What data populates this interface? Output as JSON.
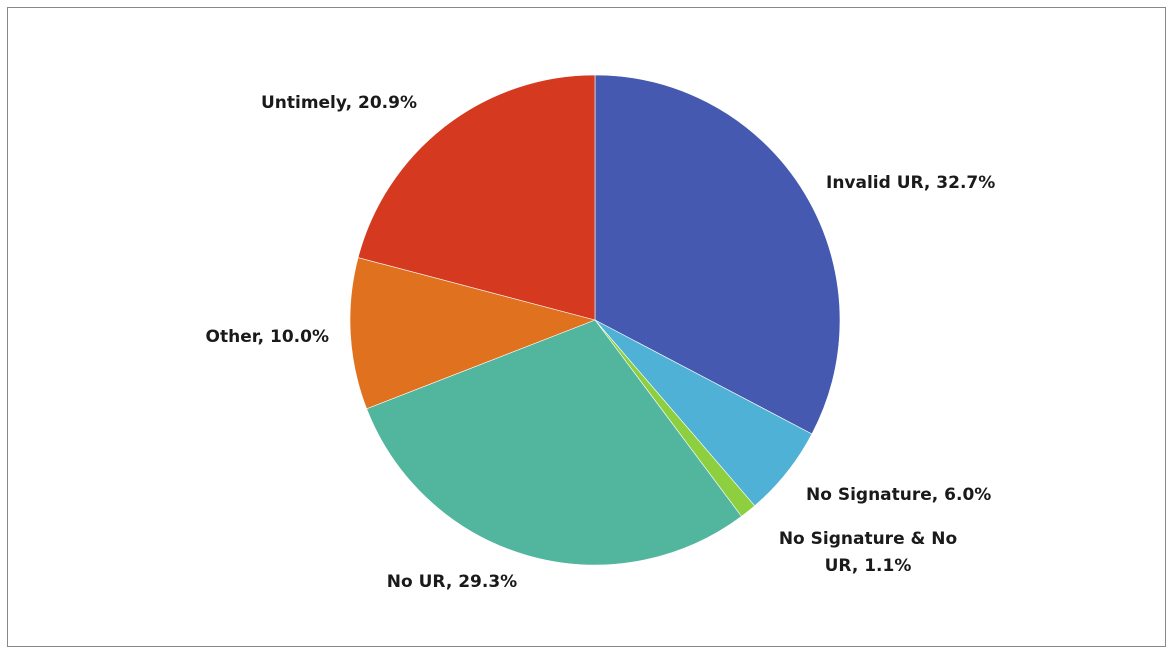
{
  "chart_data": {
    "type": "pie",
    "title": "",
    "slices": [
      {
        "category": "Invalid UR",
        "value": 32.7,
        "label": "Invalid UR, 32.7%",
        "color": "#4459AF"
      },
      {
        "category": "No Signature",
        "value": 6.0,
        "label": "No Signature, 6.0%",
        "color": "#50B1D6"
      },
      {
        "category": "No Signature & No UR",
        "value": 1.1,
        "label_lines": [
          "No Signature & No",
          "UR, 1.1%"
        ],
        "color": "#8DCF3F"
      },
      {
        "category": "No UR",
        "value": 29.3,
        "label": "No UR, 29.3%",
        "color": "#52B69E"
      },
      {
        "category": "Other",
        "value": 10.0,
        "label": "Other, 10.0%",
        "color": "#E0721F"
      },
      {
        "category": "Untimely",
        "value": 20.9,
        "label": "Untimely, 20.9%",
        "color": "#D53A20"
      }
    ],
    "legend": "none",
    "data_labels": "category, percentage"
  }
}
